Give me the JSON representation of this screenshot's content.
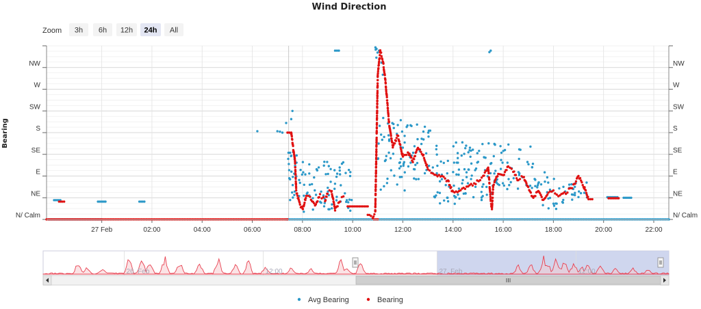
{
  "chart_data": {
    "type": "scatter",
    "title": "Wind Direction",
    "ylabel": "Bearing",
    "zoom": {
      "label": "Zoom",
      "buttons": [
        {
          "label": "3h",
          "active": false
        },
        {
          "label": "6h",
          "active": false
        },
        {
          "label": "12h",
          "active": false
        },
        {
          "label": "24h",
          "active": true
        },
        {
          "label": "All",
          "active": false
        }
      ]
    },
    "x_range_hours": [
      -2.2,
      22.6
    ],
    "x_ticks": [
      {
        "h": 0,
        "label": "27 Feb"
      },
      {
        "h": 2,
        "label": "02:00"
      },
      {
        "h": 4,
        "label": "04:00"
      },
      {
        "h": 6,
        "label": "06:00"
      },
      {
        "h": 8,
        "label": "08:00"
      },
      {
        "h": 10,
        "label": "10:00"
      },
      {
        "h": 12,
        "label": "12:00"
      },
      {
        "h": 14,
        "label": "14:00"
      },
      {
        "h": 16,
        "label": "16:00"
      },
      {
        "h": 18,
        "label": "18:00"
      },
      {
        "h": 20,
        "label": "20:00"
      },
      {
        "h": 22,
        "label": "22:00"
      }
    ],
    "ylim": [
      0,
      360
    ],
    "y_ticks": [
      {
        "v": 0,
        "label": "N/ Calm"
      },
      {
        "v": 45,
        "label": "NE"
      },
      {
        "v": 90,
        "label": "E"
      },
      {
        "v": 135,
        "label": "SE"
      },
      {
        "v": 180,
        "label": "S"
      },
      {
        "v": 225,
        "label": "SW"
      },
      {
        "v": 270,
        "label": "W"
      },
      {
        "v": 315,
        "label": "NW"
      }
    ],
    "series": [
      {
        "name": "Avg Bearing",
        "color": "#2b98c8",
        "segments": [
          {
            "t": [
              -2.1,
              0.0
            ],
            "v": [
              0,
              0
            ]
          },
          {
            "t": [
              -1.9,
              -1.65
            ],
            "v": [
              40,
              40
            ]
          },
          {
            "t": [
              -0.15,
              0.15
            ],
            "v": [
              37,
              37
            ]
          },
          {
            "t": [
              1.5,
              1.7
            ],
            "v": [
              37,
              37
            ]
          },
          {
            "t": [
              7.35,
              22.6
            ],
            "v": [
              0,
              0
            ]
          },
          {
            "t": [
              9.3,
              9.45
            ],
            "v": [
              350,
              350
            ]
          },
          {
            "t": [
              20.15,
              20.55
            ],
            "v": [
              46,
              46
            ]
          },
          {
            "t": [
              20.8,
              21.1
            ],
            "v": [
              45,
              45
            ]
          }
        ],
        "clusters": [
          {
            "t": [
              7.4,
              8.0
            ],
            "v": [
              40,
              140
            ],
            "n": 30
          },
          {
            "t": [
              8.0,
              10.0
            ],
            "v": [
              15,
              120
            ],
            "n": 70
          },
          {
            "t": [
              10.9,
              11.0
            ],
            "v": [
              335,
              360
            ],
            "n": 5
          },
          {
            "t": [
              11.0,
              12.1
            ],
            "v": [
              60,
              220
            ],
            "n": 45
          },
          {
            "t": [
              12.0,
              13.2
            ],
            "v": [
              80,
              200
            ],
            "n": 40
          },
          {
            "t": [
              13.2,
              14.6
            ],
            "v": [
              30,
              160
            ],
            "n": 60
          },
          {
            "t": [
              14.6,
              15.6
            ],
            "v": [
              40,
              160
            ],
            "n": 40
          },
          {
            "t": [
              15.6,
              17.2
            ],
            "v": [
              60,
              160
            ],
            "n": 45
          },
          {
            "t": [
              17.2,
              18.4
            ],
            "v": [
              20,
              100
            ],
            "n": 30
          },
          {
            "t": [
              18.4,
              19.4
            ],
            "v": [
              40,
              80
            ],
            "n": 20
          }
        ],
        "points": [
          {
            "t": 6.2,
            "v": 183
          },
          {
            "t": 7.0,
            "v": 183
          },
          {
            "t": 7.1,
            "v": 182
          },
          {
            "t": 7.2,
            "v": 180
          },
          {
            "t": 7.35,
            "v": 200
          },
          {
            "t": 7.6,
            "v": 225
          },
          {
            "t": 7.55,
            "v": 208
          },
          {
            "t": 11.05,
            "v": 350
          },
          {
            "t": 11.15,
            "v": 325
          },
          {
            "t": 11.2,
            "v": 300
          },
          {
            "t": 15.45,
            "v": 347
          },
          {
            "t": 15.5,
            "v": 350
          }
        ]
      },
      {
        "name": "Bearing",
        "color": "#e01010",
        "segments": [
          {
            "t": [
              -2.2,
              7.4
            ],
            "v": [
              0,
              0
            ]
          },
          {
            "t": [
              -1.7,
              -1.5
            ],
            "v": [
              37,
              37
            ]
          },
          {
            "t": [
              7.4,
              7.55
            ],
            "v": [
              180,
              180
            ]
          },
          {
            "t": [
              9.8,
              10.6
            ],
            "v": [
              27,
              27
            ]
          },
          {
            "t": [
              10.85,
              11.0
            ],
            "v": [
              0,
              0
            ]
          },
          {
            "t": [
              19.4,
              19.55
            ],
            "v": [
              42,
              42
            ]
          },
          {
            "t": [
              20.2,
              20.6
            ],
            "v": [
              44,
              44
            ]
          }
        ],
        "curves": [
          {
            "t": [
              7.55,
              7.7,
              7.75,
              7.9,
              8.0,
              8.15,
              8.3,
              8.5,
              8.7,
              8.9,
              9.0,
              9.15,
              9.3,
              9.5,
              9.7
            ],
            "v": [
              180,
              120,
              60,
              30,
              20,
              50,
              45,
              30,
              50,
              40,
              55,
              60,
              20,
              40,
              50
            ]
          },
          {
            "t": [
              10.6,
              10.8,
              10.9,
              11.0,
              11.1,
              11.2,
              11.3,
              11.45,
              11.6,
              11.8,
              12.0,
              12.2,
              12.4,
              12.6,
              12.8,
              13.0,
              13.2,
              13.5,
              13.8,
              14.0,
              14.3,
              14.6,
              14.9,
              15.2,
              15.4
            ],
            "v": [
              10,
              5,
              15,
              300,
              350,
              330,
              290,
              200,
              150,
              175,
              130,
              140,
              120,
              150,
              135,
              105,
              95,
              90,
              80,
              55,
              60,
              70,
              75,
              90,
              110
            ]
          },
          {
            "t": [
              15.4,
              15.5,
              15.55,
              15.6,
              15.8,
              16.0,
              16.2,
              16.4,
              16.6,
              16.8,
              17.0,
              17.2,
              17.4,
              17.6,
              17.8,
              18.0,
              18.2,
              18.5,
              18.8,
              19.0,
              19.2,
              19.4
            ],
            "v": [
              110,
              40,
              20,
              70,
              95,
              90,
              110,
              100,
              80,
              90,
              65,
              45,
              60,
              40,
              55,
              60,
              50,
              55,
              70,
              90,
              70,
              42
            ]
          }
        ]
      }
    ],
    "navigator": {
      "labels": [
        {
          "h": -27,
          "label": "26. Feb"
        },
        {
          "h": -15,
          "label": "12:00"
        },
        {
          "h": 0,
          "label": "27. Feb"
        },
        {
          "h": 12,
          "label": "12:00"
        }
      ],
      "range_hours": [
        -34,
        20
      ],
      "window_hours": [
        0,
        20
      ],
      "bursts": [
        {
          "h": -31,
          "v": 25
        },
        {
          "h": -30.2,
          "v": 15
        },
        {
          "h": -28.9,
          "v": 12
        },
        {
          "h": -26.6,
          "v": 35
        },
        {
          "h": -25.5,
          "v": 40
        },
        {
          "h": -24.8,
          "v": 30
        },
        {
          "h": -23.5,
          "v": 38
        },
        {
          "h": -22.2,
          "v": 30
        },
        {
          "h": -20.5,
          "v": 28
        },
        {
          "h": -18.9,
          "v": 36
        },
        {
          "h": -17.4,
          "v": 22
        },
        {
          "h": -16.3,
          "v": 30
        },
        {
          "h": -14.8,
          "v": 18
        },
        {
          "h": -12.6,
          "v": 14
        },
        {
          "h": -10.9,
          "v": 12
        },
        {
          "h": -8.3,
          "v": 32
        },
        {
          "h": -7.8,
          "v": 16
        },
        {
          "h": -6.6,
          "v": 26
        },
        {
          "h": 7.0,
          "v": 20
        },
        {
          "h": 8.1,
          "v": 22
        },
        {
          "h": 9.2,
          "v": 38
        },
        {
          "h": 9.5,
          "v": 28
        },
        {
          "h": 10.3,
          "v": 40
        },
        {
          "h": 11.0,
          "v": 30
        },
        {
          "h": 11.8,
          "v": 26
        },
        {
          "h": 12.5,
          "v": 16
        },
        {
          "h": 13.0,
          "v": 22
        },
        {
          "h": 14.1,
          "v": 18
        },
        {
          "h": 15.4,
          "v": 14
        },
        {
          "h": 16.9,
          "v": 16
        },
        {
          "h": 18.2,
          "v": 12
        }
      ]
    },
    "legend": {
      "position": "bottom"
    }
  }
}
